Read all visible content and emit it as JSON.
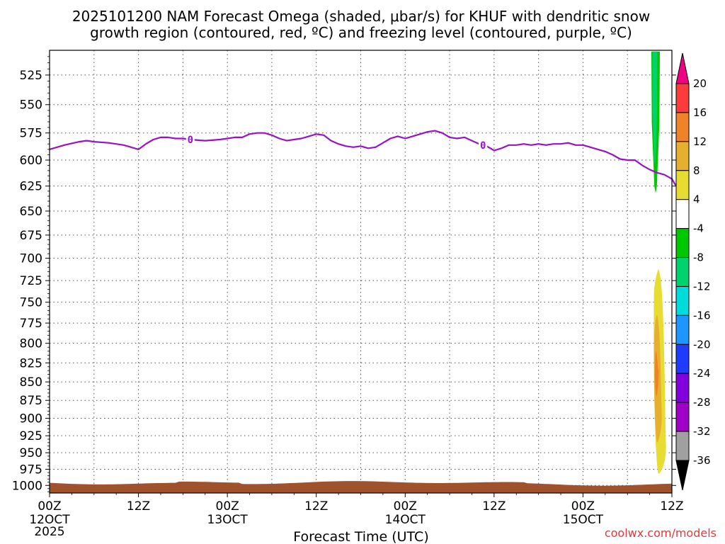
{
  "chart_data": {
    "type": "heatmap",
    "title_line1": "2025101200 NAM Forecast Omega (shaded, μbar/s) for KHUF with dendritic snow",
    "title_line2": "growth region (contoured, red, ºC) and freezing level (contoured, purple, ºC)",
    "xlabel": "Forecast Time (UTC)",
    "credit": "coolwx.com/models",
    "y_axis": {
      "reversed": true,
      "range": [
        1012,
        505
      ],
      "ticks": [
        525,
        550,
        575,
        600,
        625,
        650,
        675,
        700,
        725,
        750,
        775,
        800,
        825,
        850,
        875,
        900,
        925,
        950,
        975,
        1000
      ]
    },
    "x_axis": {
      "range_hours": [
        0,
        84
      ],
      "ticks": [
        {
          "hour": 0,
          "label": "00Z",
          "date": "12OCT",
          "year": "2025"
        },
        {
          "hour": 12,
          "label": "12Z",
          "date": "",
          "year": ""
        },
        {
          "hour": 24,
          "label": "00Z",
          "date": "13OCT",
          "year": ""
        },
        {
          "hour": 36,
          "label": "12Z",
          "date": "",
          "year": ""
        },
        {
          "hour": 48,
          "label": "00Z",
          "date": "14OCT",
          "year": ""
        },
        {
          "hour": 60,
          "label": "12Z",
          "date": "",
          "year": ""
        },
        {
          "hour": 72,
          "label": "00Z",
          "date": "15OCT",
          "year": ""
        },
        {
          "hour": 84,
          "label": "12Z",
          "date": "",
          "year": ""
        }
      ],
      "grid_every_hours": 6
    },
    "grid": true,
    "freezing_level": {
      "label": "0",
      "color": "#9a12c8",
      "label_hours": [
        19,
        58.5
      ],
      "points": [
        [
          0,
          590
        ],
        [
          2,
          586
        ],
        [
          4,
          583
        ],
        [
          5,
          582
        ],
        [
          6,
          583
        ],
        [
          8,
          584
        ],
        [
          10,
          586
        ],
        [
          11,
          588
        ],
        [
          12,
          590
        ],
        [
          13,
          585
        ],
        [
          14,
          581
        ],
        [
          15,
          579
        ],
        [
          16,
          579
        ],
        [
          17,
          580
        ],
        [
          18,
          580
        ],
        [
          19,
          581
        ],
        [
          21,
          582
        ],
        [
          23,
          581
        ],
        [
          24,
          580
        ],
        [
          25,
          579
        ],
        [
          26,
          579
        ],
        [
          27,
          576
        ],
        [
          28,
          575
        ],
        [
          29,
          575
        ],
        [
          30,
          577
        ],
        [
          31,
          580
        ],
        [
          32,
          582
        ],
        [
          33,
          581
        ],
        [
          34,
          580
        ],
        [
          35,
          578
        ],
        [
          36,
          576
        ],
        [
          37,
          577
        ],
        [
          38,
          582
        ],
        [
          39,
          585
        ],
        [
          40,
          587
        ],
        [
          41,
          588
        ],
        [
          42,
          587
        ],
        [
          43,
          589
        ],
        [
          44,
          588
        ],
        [
          45,
          584
        ],
        [
          46,
          580
        ],
        [
          47,
          578
        ],
        [
          48,
          580
        ],
        [
          49,
          578
        ],
        [
          50,
          576
        ],
        [
          51,
          574
        ],
        [
          52,
          573
        ],
        [
          53,
          575
        ],
        [
          54,
          579
        ],
        [
          55,
          580
        ],
        [
          56,
          579
        ],
        [
          57,
          582
        ],
        [
          58,
          585
        ],
        [
          59,
          587
        ],
        [
          60,
          591
        ],
        [
          61,
          589
        ],
        [
          62,
          586
        ],
        [
          63,
          586
        ],
        [
          64,
          585
        ],
        [
          65,
          586
        ],
        [
          66,
          585
        ],
        [
          67,
          586
        ],
        [
          68,
          585
        ],
        [
          69,
          585
        ],
        [
          70,
          584
        ],
        [
          71,
          586
        ],
        [
          72,
          586
        ],
        [
          73,
          588
        ],
        [
          74,
          590
        ],
        [
          75,
          592
        ],
        [
          76,
          595
        ],
        [
          77,
          599
        ],
        [
          78,
          600
        ],
        [
          79,
          600
        ],
        [
          80,
          605
        ],
        [
          81,
          609
        ],
        [
          82,
          612
        ],
        [
          83,
          614
        ],
        [
          84,
          618
        ],
        [
          84.4,
          623
        ],
        [
          84.8,
          626
        ]
      ]
    },
    "omega_regions": [
      {
        "interval": "-8 to -4",
        "color": "#00c800",
        "hour_center": 81.8,
        "p_top": 506,
        "p_bottom": 632
      },
      {
        "interval": "-12 to -8",
        "color": "#00d26e",
        "hour_center": 81.7,
        "p_top": 506,
        "p_bottom": 605
      },
      {
        "interval": "4 to 8",
        "color": "#e6dc32",
        "hour_center": 82.2,
        "p_top": 712,
        "p_bottom": 982
      },
      {
        "interval": "8 to 12",
        "color": "#e6af2d",
        "hour_center": 82.0,
        "p_top": 765,
        "p_bottom": 935
      },
      {
        "interval": "12 to 16",
        "color": "#f08228",
        "hour_center": 81.9,
        "p_top": 810,
        "p_bottom": 870
      }
    ],
    "terrain": {
      "color": "#a0522d",
      "surface_pressure_range": [
        993,
        999
      ]
    },
    "colorbar": {
      "labels": [
        "20",
        "16",
        "12",
        "8",
        "4",
        "-4",
        "-8",
        "-12",
        "-16",
        "-20",
        "-24",
        "-28",
        "-32",
        "-36"
      ],
      "colors": [
        "#f00082",
        "#fa3c3c",
        "#f08228",
        "#e6af2d",
        "#e6dc32",
        "#ffffff",
        "#00c800",
        "#00d26e",
        "#00dcdc",
        "#1e96ff",
        "#1e3cff",
        "#8200dc",
        "#a000c8",
        "#a0a0a0",
        "#000000"
      ]
    }
  }
}
